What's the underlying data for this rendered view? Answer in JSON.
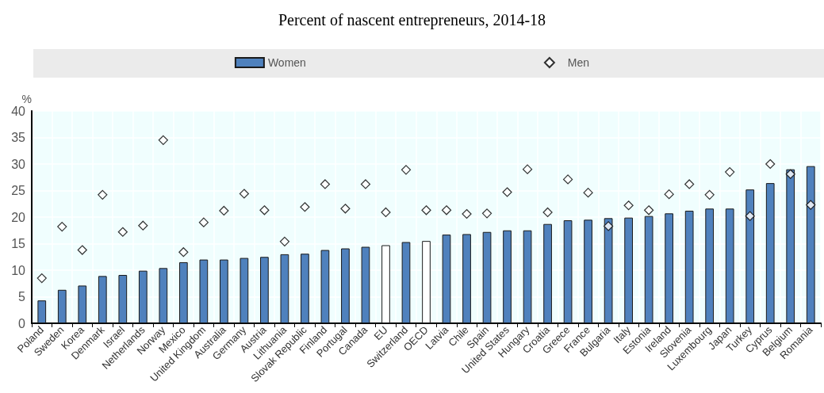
{
  "chart_data": {
    "type": "bar",
    "title": "Percent of nascent entrepreneurs, 2014-18",
    "ylabel": "%",
    "categories": [
      "Poland",
      "Sweden",
      "Korea",
      "Denmark",
      "Israel",
      "Netherlands",
      "Norway",
      "Mexico",
      "United Kingdom",
      "Australia",
      "Germany",
      "Austria",
      "Lithuania",
      "Slovak Republic",
      "Finland",
      "Portugal",
      "Canada",
      "EU",
      "Switzerland",
      "OECD",
      "Latvia",
      "Chile",
      "Spain",
      "United States",
      "Hungary",
      "Croatia",
      "Greece",
      "France",
      "Bulgaria",
      "Italy",
      "Estonia",
      "Ireland",
      "Slovenia",
      "Luxembourg",
      "Japan",
      "Turkey",
      "Cyprus",
      "Belgium",
      "Romania"
    ],
    "series": [
      {
        "name": "Women",
        "color": "#4f81bd",
        "colors": [
          "#4f81bd",
          "#4f81bd",
          "#4f81bd",
          "#4f81bd",
          "#4f81bd",
          "#4f81bd",
          "#4f81bd",
          "#4f81bd",
          "#4f81bd",
          "#4f81bd",
          "#4f81bd",
          "#4f81bd",
          "#4f81bd",
          "#4f81bd",
          "#4f81bd",
          "#4f81bd",
          "#4f81bd",
          "#ffffff",
          "#4f81bd",
          "#ffffff",
          "#4f81bd",
          "#4f81bd",
          "#4f81bd",
          "#4f81bd",
          "#4f81bd",
          "#4f81bd",
          "#4f81bd",
          "#4f81bd",
          "#4f81bd",
          "#4f81bd",
          "#4f81bd",
          "#4f81bd",
          "#4f81bd",
          "#4f81bd",
          "#4f81bd",
          "#4f81bd",
          "#4f81bd",
          "#4f81bd",
          "#4f81bd"
        ],
        "values": [
          4.3,
          6.3,
          7.1,
          8.9,
          9.1,
          9.9,
          10.4,
          11.5,
          12.0,
          12.0,
          12.3,
          12.5,
          13.0,
          13.1,
          13.8,
          14.1,
          14.4,
          14.7,
          15.3,
          15.5,
          16.7,
          16.8,
          17.2,
          17.5,
          17.5,
          18.7,
          19.4,
          19.5,
          19.8,
          19.9,
          20.2,
          20.7,
          21.2,
          21.6,
          21.6,
          25.2,
          26.4,
          29.0,
          29.6
        ]
      },
      {
        "name": "Men",
        "type": "scatter",
        "marker": "diamond",
        "color": "#ffffff",
        "values": [
          8.5,
          18.2,
          13.8,
          24.2,
          17.2,
          18.4,
          34.5,
          13.4,
          19.0,
          21.2,
          24.4,
          21.3,
          15.4,
          21.9,
          26.2,
          21.6,
          26.2,
          20.9,
          28.9,
          21.3,
          21.3,
          20.6,
          20.7,
          24.7,
          29.0,
          20.9,
          27.1,
          24.6,
          18.3,
          22.2,
          21.3,
          24.3,
          26.2,
          24.2,
          28.5,
          20.2,
          30.0,
          28.1,
          22.3
        ]
      }
    ],
    "ylim": [
      0,
      40
    ],
    "yticks": [
      0,
      5,
      10,
      15,
      20,
      25,
      30,
      35,
      40
    ],
    "grid": true,
    "legend": "top"
  }
}
